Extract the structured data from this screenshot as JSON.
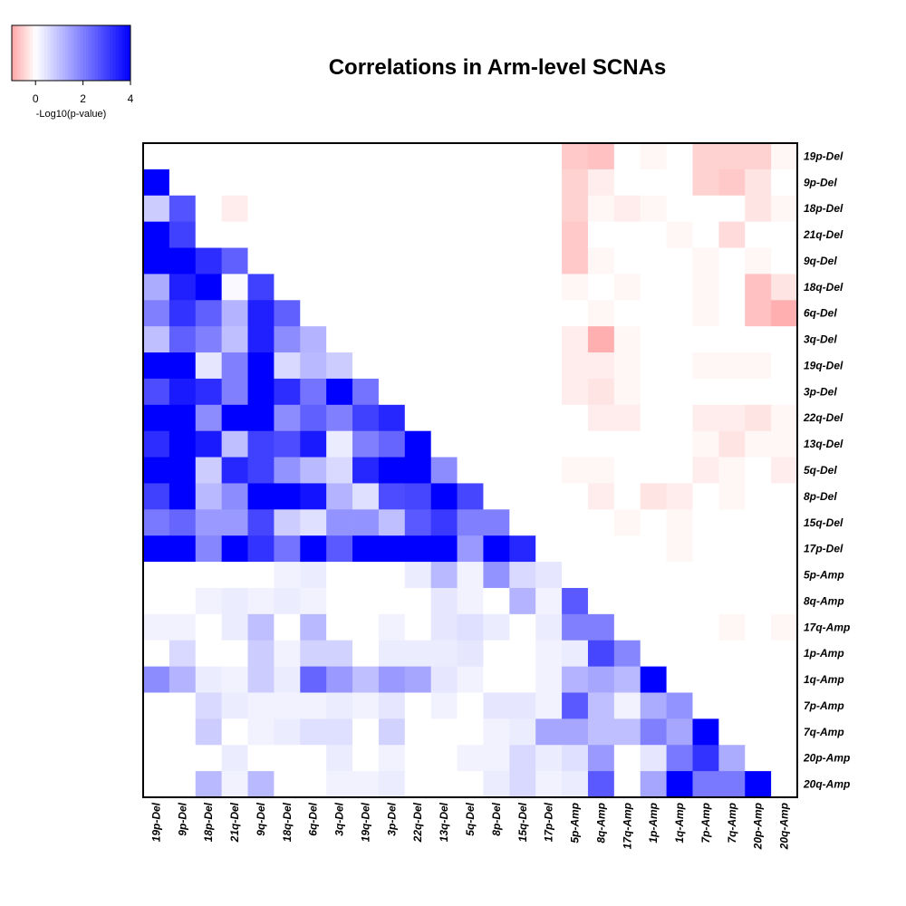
{
  "chart_data": {
    "type": "heatmap",
    "title": "Correlations in Arm-level SCNAs",
    "row_labels": [
      "19p-Del",
      "9p-Del",
      "18p-Del",
      "21q-Del",
      "9q-Del",
      "18q-Del",
      "6q-Del",
      "3q-Del",
      "19q-Del",
      "3p-Del",
      "22q-Del",
      "13q-Del",
      "5q-Del",
      "8p-Del",
      "15q-Del",
      "17p-Del",
      "5p-Amp",
      "8q-Amp",
      "17q-Amp",
      "1p-Amp",
      "1q-Amp",
      "7p-Amp",
      "7q-Amp",
      "20p-Amp",
      "20q-Amp"
    ],
    "col_labels": [
      "19p-Del",
      "9p-Del",
      "18p-Del",
      "21q-Del",
      "9q-Del",
      "18q-Del",
      "6q-Del",
      "3q-Del",
      "19q-Del",
      "3p-Del",
      "22q-Del",
      "13q-Del",
      "5q-Del",
      "8p-Del",
      "15q-Del",
      "17p-Del",
      "5p-Amp",
      "8q-Amp",
      "17q-Amp",
      "1p-Amp",
      "1q-Amp",
      "7p-Amp",
      "7q-Amp",
      "20p-Amp",
      "20q-Amp"
    ],
    "values": [
      [
        0,
        0,
        0,
        0,
        0,
        0,
        0,
        0,
        0,
        0,
        0,
        0,
        0,
        0,
        0,
        0,
        -0.6,
        -0.7,
        0,
        -0.1,
        0,
        -0.5,
        -0.5,
        -0.5,
        -0.1
      ],
      [
        4,
        0,
        0,
        0,
        0,
        0,
        0,
        0,
        0,
        0,
        0,
        0,
        0,
        0,
        0,
        0,
        -0.5,
        -0.2,
        0,
        0,
        0,
        -0.5,
        -0.6,
        -0.3,
        0
      ],
      [
        0.8,
        2.7,
        0,
        -0.2,
        0,
        0,
        0,
        0,
        0,
        0,
        0,
        0,
        0,
        0,
        0,
        0,
        -0.5,
        -0.1,
        -0.2,
        -0.1,
        0,
        0,
        0,
        -0.3,
        -0.1
      ],
      [
        4,
        3,
        0,
        0,
        0,
        0,
        0,
        0,
        0,
        0,
        0,
        0,
        0,
        0,
        0,
        0,
        -0.6,
        0,
        0,
        0,
        -0.1,
        0,
        -0.4,
        0,
        0
      ],
      [
        4,
        4,
        3.3,
        2.5,
        0,
        0,
        0,
        0,
        0,
        0,
        0,
        0,
        0,
        0,
        0,
        0,
        -0.6,
        -0.1,
        0,
        0,
        0,
        -0.1,
        0,
        -0.1,
        0
      ],
      [
        1.3,
        3.5,
        4,
        0.1,
        3,
        0,
        0,
        0,
        0,
        0,
        0,
        0,
        0,
        0,
        0,
        0,
        -0.1,
        0,
        -0.1,
        0,
        0,
        -0.1,
        0,
        -0.7,
        -0.3
      ],
      [
        2,
        3.2,
        2.5,
        1.2,
        3.5,
        2.5,
        0,
        0,
        0,
        0,
        0,
        0,
        0,
        0,
        0,
        0,
        0,
        -0.1,
        0,
        0,
        0,
        -0.1,
        0,
        -0.7,
        -0.9
      ],
      [
        1,
        2.5,
        2,
        1,
        3.5,
        1.8,
        1.2,
        0,
        0,
        0,
        0,
        0,
        0,
        0,
        0,
        0,
        -0.2,
        -0.9,
        -0.1,
        0,
        0,
        0,
        0,
        0,
        0
      ],
      [
        4,
        4,
        0.4,
        2,
        4,
        0.6,
        1.1,
        0.8,
        0,
        0,
        0,
        0,
        0,
        0,
        0,
        0,
        -0.2,
        -0.2,
        -0.1,
        0,
        0,
        -0.1,
        -0.1,
        -0.1,
        0
      ],
      [
        2.8,
        3.6,
        3.3,
        2,
        4,
        3.3,
        2.2,
        4,
        2.2,
        0,
        0,
        0,
        0,
        0,
        0,
        0,
        -0.2,
        -0.3,
        -0.1,
        0,
        0,
        0,
        0,
        0,
        0
      ],
      [
        4,
        4,
        1.8,
        4,
        4,
        1.8,
        2.5,
        2,
        3,
        3.4,
        0,
        0,
        0,
        0,
        0,
        0,
        0,
        -0.2,
        -0.2,
        0,
        0,
        -0.2,
        -0.2,
        -0.3,
        -0.1
      ],
      [
        3.3,
        4,
        3.6,
        1,
        3,
        2.8,
        3.6,
        0.3,
        2,
        2.4,
        4,
        0,
        0,
        0,
        0,
        0,
        0,
        0,
        0,
        0,
        0,
        -0.1,
        -0.3,
        -0.1,
        -0.1
      ],
      [
        4,
        4,
        0.8,
        3.4,
        3,
        1.7,
        1.1,
        0.6,
        3.4,
        4,
        4,
        1.8,
        0,
        0,
        0,
        0,
        -0.1,
        -0.1,
        0,
        0,
        0,
        -0.2,
        -0.1,
        0,
        -0.2
      ],
      [
        3,
        4,
        1.1,
        1.8,
        4,
        4,
        3.7,
        1.2,
        0.5,
        2.8,
        2.9,
        4,
        2.9,
        0,
        0,
        0,
        0,
        -0.2,
        0,
        -0.3,
        -0.2,
        0,
        -0.1,
        0,
        0
      ],
      [
        2.1,
        2.4,
        1.6,
        1.6,
        2.9,
        0.8,
        0.5,
        1.7,
        1.7,
        1,
        2.6,
        3.1,
        2,
        2,
        0,
        0,
        0,
        0,
        -0.1,
        0,
        -0.1,
        0,
        0,
        0,
        0
      ],
      [
        4,
        4,
        1.9,
        4,
        3.2,
        2.2,
        4,
        2.6,
        4,
        4,
        4,
        4,
        1.6,
        4,
        3.4,
        0,
        0,
        0,
        0,
        0,
        -0.1,
        0,
        0,
        0,
        0
      ],
      [
        0,
        0,
        0,
        0,
        0,
        0.2,
        0.3,
        0,
        0,
        0,
        0.3,
        1.1,
        0.2,
        1.7,
        0.6,
        0.4,
        0,
        0,
        0,
        0,
        0,
        0,
        0,
        0,
        0
      ],
      [
        0,
        0,
        0.2,
        0.3,
        0.2,
        0.3,
        0.2,
        0,
        0,
        0,
        0,
        0.4,
        0.2,
        0,
        1.2,
        0.2,
        2.6,
        0,
        0,
        0,
        0,
        0,
        0,
        0,
        0
      ],
      [
        0.2,
        0.2,
        0,
        0.3,
        1,
        0,
        1.1,
        0,
        0,
        0.2,
        0,
        0.4,
        0.5,
        0.3,
        0,
        0.3,
        2,
        2,
        0,
        0,
        0,
        0,
        -0.1,
        0,
        -0.1
      ],
      [
        0,
        0.6,
        0,
        0,
        0.8,
        0.2,
        0.7,
        0.7,
        0,
        0.3,
        0.3,
        0.3,
        0.4,
        0,
        0,
        0.2,
        0.3,
        2.9,
        1.9,
        0,
        0,
        0,
        0,
        0,
        0
      ],
      [
        1.8,
        1.2,
        0.3,
        0.2,
        0.8,
        0.3,
        2.4,
        1.6,
        1,
        1.6,
        1.4,
        0.4,
        0.2,
        0,
        0,
        0.2,
        1.2,
        1.4,
        1.1,
        4,
        0,
        0,
        0,
        0,
        0
      ],
      [
        0,
        0,
        0.6,
        0.3,
        0.2,
        0.2,
        0.2,
        0.3,
        0.2,
        0.4,
        0,
        0.2,
        0,
        0.4,
        0.4,
        0.2,
        2.6,
        1,
        0.2,
        1.3,
        1.7,
        0,
        0,
        0,
        0
      ],
      [
        0,
        0,
        0.8,
        0,
        0.2,
        0.3,
        0.5,
        0.5,
        0,
        0.7,
        0,
        0,
        0,
        0.2,
        0.3,
        1.4,
        1.4,
        1,
        1,
        2,
        1.4,
        4,
        0,
        0,
        0
      ],
      [
        0,
        0,
        0,
        0.3,
        0,
        0,
        0,
        0.3,
        0,
        0.2,
        0,
        0,
        0.2,
        0.2,
        0.6,
        0.3,
        0.5,
        1.6,
        0,
        0.4,
        2.1,
        3.2,
        1.3,
        0,
        0
      ],
      [
        0,
        0,
        1.1,
        0.2,
        1.1,
        0,
        0,
        0.2,
        0.2,
        0.3,
        0,
        0,
        0,
        0.3,
        0.6,
        0.2,
        0.3,
        2.6,
        0,
        1.4,
        4,
        2.1,
        2.1,
        4,
        0
      ]
    ],
    "legend": {
      "label": "-Log10(p-value)",
      "ticks": [
        "0",
        "2",
        "4"
      ],
      "range": [
        -1,
        4
      ]
    },
    "colors": {
      "negative": "#ff0000",
      "zero": "#ffffff",
      "positive": "#0000ff"
    }
  }
}
